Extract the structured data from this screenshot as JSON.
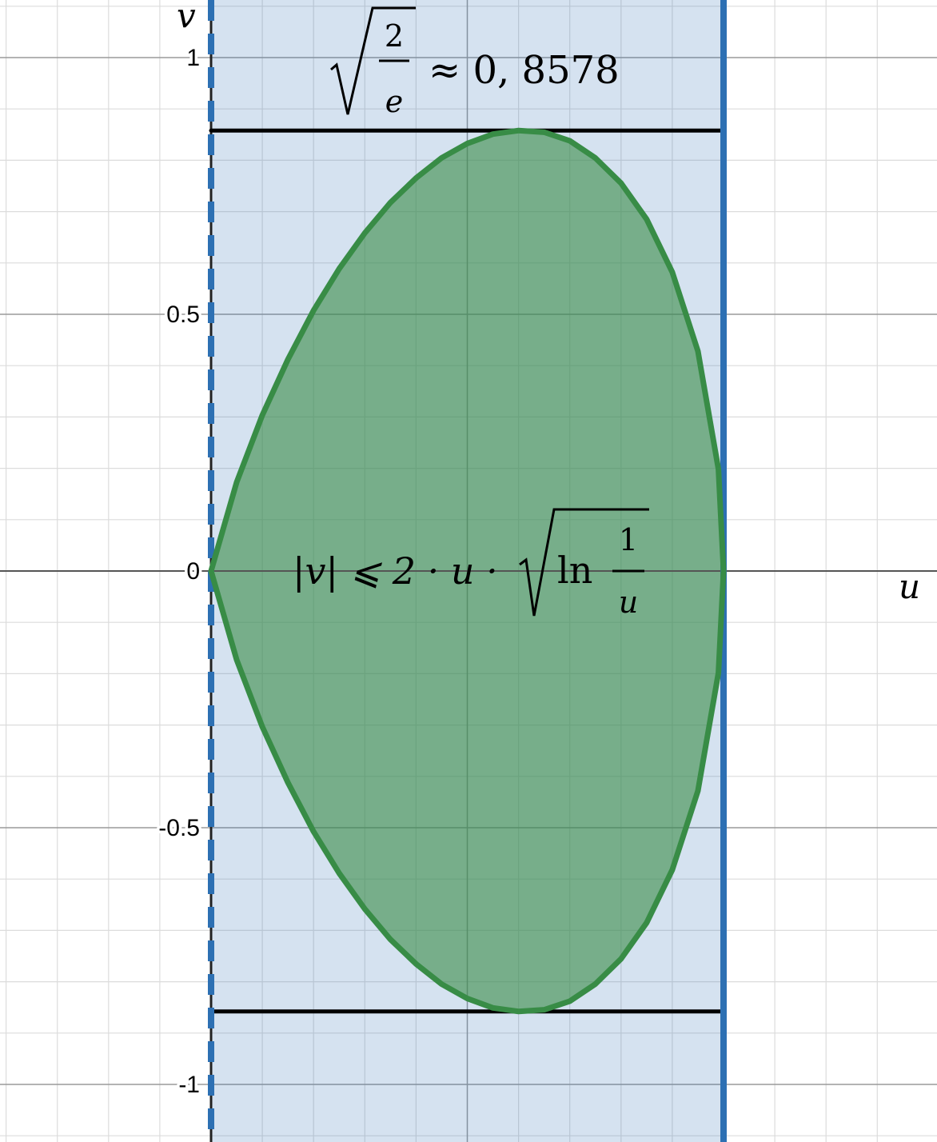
{
  "chart_data": {
    "type": "area",
    "title": "",
    "x_axis": {
      "label": "u",
      "range": [
        -0.4,
        1.4
      ],
      "tick_labels": []
    },
    "y_axis": {
      "label": "v",
      "range": [
        -1.11,
        1.11
      ],
      "ticks": [
        {
          "value": 1,
          "label": "1"
        },
        {
          "value": 0.5,
          "label": "0.5"
        },
        {
          "value": 0,
          "label": "0"
        },
        {
          "value": -0.5,
          "label": "-0.5"
        },
        {
          "value": -1,
          "label": "-1"
        }
      ]
    },
    "grid": {
      "major_step": 0.5,
      "minor_step": 0.1,
      "visible": true
    },
    "region": {
      "name": "strip",
      "u_range": [
        0,
        1
      ],
      "left_boundary": "dashed",
      "right_boundary": "solid",
      "color": "#2d70b3"
    },
    "curve": {
      "name": "|v| <= 2u sqrt(ln(1/u))",
      "u_range": [
        0,
        1
      ],
      "color": "#388c46",
      "samples": [
        [
          0.0,
          0.0
        ],
        [
          0.05,
          0.1731
        ],
        [
          0.1,
          0.3035
        ],
        [
          0.15,
          0.4122
        ],
        [
          0.2,
          0.5075
        ],
        [
          0.25,
          0.5887
        ],
        [
          0.3,
          0.6583
        ],
        [
          0.35,
          0.7176
        ],
        [
          0.4,
          0.7653
        ],
        [
          0.45,
          0.8047
        ],
        [
          0.5,
          0.8326
        ],
        [
          0.55,
          0.851
        ],
        [
          0.6,
          0.8579
        ],
        [
          0.65,
          0.8546
        ],
        [
          0.7,
          0.8379
        ],
        [
          0.75,
          0.8044
        ],
        [
          0.8,
          0.7554
        ],
        [
          0.85,
          0.6851
        ],
        [
          0.9,
          0.5821
        ],
        [
          0.95,
          0.4283
        ],
        [
          0.99,
          0.1986
        ],
        [
          1.0,
          0.0
        ]
      ]
    },
    "bound_lines": [
      {
        "v": 0.8578,
        "u_range": [
          0,
          1
        ],
        "color": "#000000"
      },
      {
        "v": -0.8578,
        "u_range": [
          0,
          1
        ],
        "color": "#000000"
      }
    ],
    "annotations": {
      "top_value": "≈ 0, 8578",
      "top_sqrt_num": "2",
      "top_sqrt_den": "e",
      "inequality_left": "|v| ⩽ 2 · u ·",
      "ln_text": "ln",
      "ln_frac_num": "1",
      "ln_frac_den": "u"
    }
  }
}
